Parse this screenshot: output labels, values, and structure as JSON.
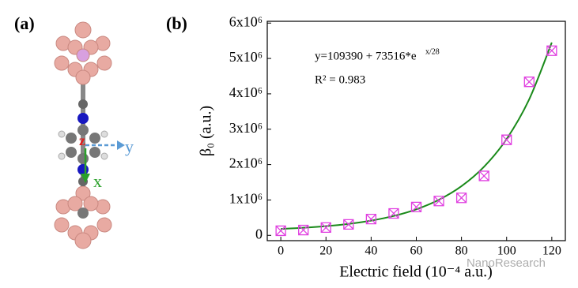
{
  "panel_a": {
    "label": "(a)",
    "axis_z": "z",
    "axis_y": "y",
    "axis_x": "x"
  },
  "watermark": "NanoResearch",
  "chart_data": {
    "type": "scatter",
    "panel_label": "(b)",
    "x_label": "Electric field (10⁻⁴ a.u.)",
    "y_label": "β₀ (a.u.)",
    "equation": {
      "text": "y=109390 + 73516*e",
      "exponent": "x/28"
    },
    "r_squared": "R² = 0.983",
    "x": [
      0,
      10,
      20,
      30,
      40,
      50,
      60,
      70,
      80,
      90,
      100,
      110,
      120
    ],
    "values": [
      130000,
      150000,
      220000,
      310000,
      460000,
      620000,
      800000,
      970000,
      1060000,
      1680000,
      2700000,
      4340000,
      5220000
    ],
    "color": "#e040e0",
    "fit": {
      "color": "#1a8a1a",
      "x": [
        0,
        10,
        20,
        30,
        40,
        50,
        60,
        70,
        80,
        90,
        100,
        110,
        120
      ],
      "values": [
        182900,
        214500,
        259600,
        324000,
        416200,
        547800,
        736000,
        1005000,
        1389400,
        1938900,
        2724200,
        3846600,
        5450700
      ]
    },
    "xlim": [
      -6,
      126
    ],
    "ylim": [
      -150000,
      6050000
    ],
    "xticks": [
      0,
      20,
      40,
      60,
      80,
      100,
      120
    ],
    "yticks": [
      0,
      {
        "value": 1000000,
        "label": "1x10⁶"
      },
      {
        "value": 2000000,
        "label": "2x10⁶"
      },
      {
        "value": 3000000,
        "label": "3x10⁶"
      },
      {
        "value": 4000000,
        "label": "4x10⁶"
      },
      {
        "value": 5000000,
        "label": "5x10⁶"
      },
      {
        "value": 6000000,
        "label": "6x10⁶"
      }
    ]
  }
}
